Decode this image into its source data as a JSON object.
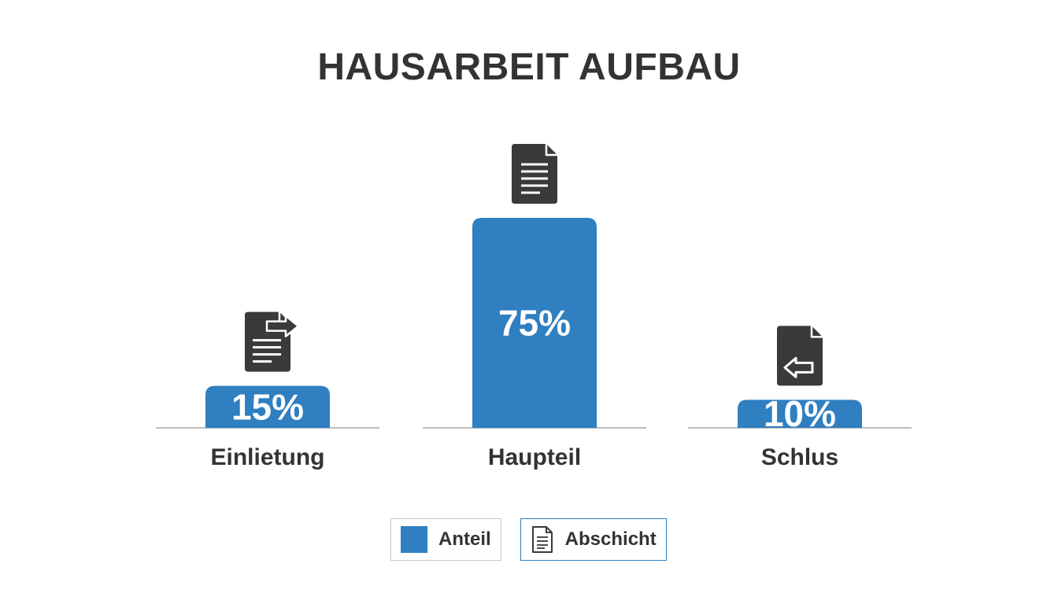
{
  "title": "HAUSARBEIT AUFBAU",
  "colors": {
    "bar": "#2f7fc1",
    "icon": "#3a3a3a",
    "baseline": "#bdbdbd",
    "text": "#333333",
    "value_text": "#ffffff"
  },
  "chart_data": {
    "type": "bar",
    "title": "HAUSARBEIT AUFBAU",
    "categories": [
      "Einlietung",
      "Haupteil",
      "Schlus"
    ],
    "values": [
      15,
      75,
      10
    ],
    "value_labels": [
      "15%",
      "75%",
      "10%"
    ],
    "icons": [
      "document-export-icon",
      "document-text-icon",
      "document-import-icon"
    ],
    "unit": "%",
    "legend": {
      "placement": "bottom-center",
      "entries": [
        {
          "label": "Anteil",
          "marker": "swatch"
        },
        {
          "label": "Abschicht",
          "marker": "document-icon"
        }
      ]
    },
    "grid": false
  }
}
